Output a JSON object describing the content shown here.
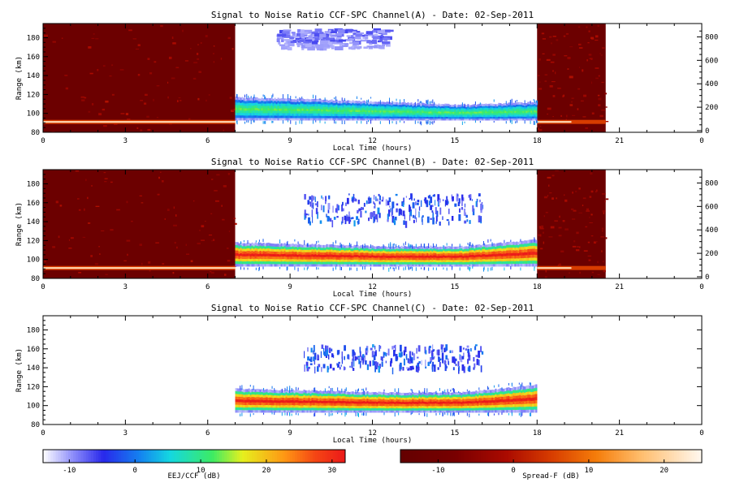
{
  "figure": {
    "background": "#ffffff"
  },
  "chart_data": [
    {
      "type": "heatmap",
      "title": "Signal to Noise Ratio CCF-SPC Channel(A) - Date: 02-Sep-2011",
      "xlabel": "Local Time (hours)",
      "ylabel": "Range (km)",
      "xlim": [
        0,
        24
      ],
      "ylim": [
        80,
        195
      ],
      "y2lim": [
        0,
        900
      ],
      "xticks": [
        "0",
        "3",
        "6",
        "9",
        "12",
        "15",
        "18",
        "21",
        "0"
      ],
      "yticks": [
        80,
        100,
        120,
        140,
        160,
        180
      ],
      "y2ticks": [
        0,
        200,
        400,
        600,
        800
      ],
      "spreadF_bg": [
        [
          0,
          7
        ],
        [
          18,
          20.5
        ]
      ],
      "echo_window": [
        7,
        18
      ],
      "eej_layer": {
        "t": [
          7,
          18
        ],
        "top": [
          117,
          115,
          112,
          109,
          112
        ],
        "bottom": [
          93,
          93,
          93,
          93,
          93
        ],
        "core_db": 10
      },
      "upper_echo": {
        "t": [
          8.5,
          12.5
        ],
        "range": [
          170,
          190
        ],
        "core_db": -5
      },
      "spreadF_line_km": 91
    },
    {
      "type": "heatmap",
      "title": "Signal to Noise Ratio CCF-SPC Channel(B) - Date: 02-Sep-2011",
      "xlabel": "Local Time (hours)",
      "ylabel": "Range (km)",
      "xlim": [
        0,
        24
      ],
      "ylim": [
        80,
        195
      ],
      "y2lim": [
        0,
        900
      ],
      "xticks": [
        "0",
        "3",
        "6",
        "9",
        "12",
        "15",
        "18",
        "21",
        "0"
      ],
      "yticks": [
        80,
        100,
        120,
        140,
        160,
        180
      ],
      "y2ticks": [
        0,
        200,
        400,
        600,
        800
      ],
      "spreadF_bg": [
        [
          0,
          7
        ],
        [
          18,
          20.5
        ]
      ],
      "echo_window": [
        7,
        18
      ],
      "eej_layer": {
        "t": [
          7,
          18
        ],
        "top": [
          118,
          116,
          114,
          114,
          121
        ],
        "bottom": [
          93,
          93,
          93,
          93,
          93
        ],
        "core_db": 30
      },
      "upper_echo": {
        "t": [
          9.5,
          16
        ],
        "range": [
          140,
          170
        ],
        "core_db": 0
      },
      "spreadF_line_km": 91
    },
    {
      "type": "heatmap",
      "title": "Signal to Noise Ratio CCF-SPC Channel(C) - Date: 02-Sep-2011",
      "xlabel": "Local Time (hours)",
      "ylabel": "Range (km)",
      "xlim": [
        0,
        24
      ],
      "ylim": [
        80,
        195
      ],
      "y2lim": null,
      "xticks": [
        "0",
        "3",
        "6",
        "9",
        "12",
        "15",
        "18",
        "21",
        "0"
      ],
      "yticks": [
        80,
        100,
        120,
        140,
        160,
        180
      ],
      "y2ticks": [],
      "spreadF_bg": [],
      "echo_window": [
        7,
        18
      ],
      "eej_layer": {
        "t": [
          7,
          18
        ],
        "top": [
          118,
          116,
          114,
          114,
          122
        ],
        "bottom": [
          93,
          93,
          93,
          93,
          93
        ],
        "core_db": 30
      },
      "upper_echo": {
        "t": [
          9.5,
          16
        ],
        "range": [
          140,
          165
        ],
        "core_db": 0
      },
      "spreadF_line_km": null
    }
  ],
  "colorbars": [
    {
      "label": "EEJ/CCF (dB)",
      "range": [
        -14,
        32
      ],
      "ticks": [
        "-10",
        "0",
        "10",
        "20",
        "30"
      ],
      "tick_values": [
        -10,
        0,
        10,
        20,
        30
      ],
      "colormap": "eej"
    },
    {
      "label": "Spread-F (dB)",
      "range": [
        -15,
        25
      ],
      "ticks": [
        "-10",
        "0",
        "10",
        "20"
      ],
      "tick_values": [
        -10,
        0,
        10,
        20
      ],
      "colormap": "spreadf"
    }
  ]
}
